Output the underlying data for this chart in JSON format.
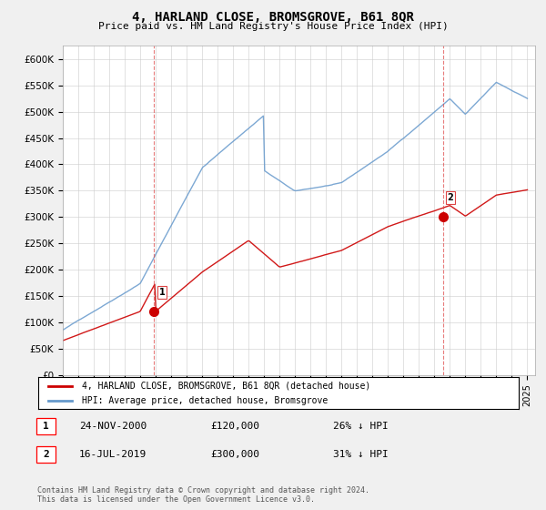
{
  "title": "4, HARLAND CLOSE, BROMSGROVE, B61 8QR",
  "subtitle": "Price paid vs. HM Land Registry's House Price Index (HPI)",
  "ylabel_ticks": [
    0,
    50000,
    100000,
    150000,
    200000,
    250000,
    300000,
    350000,
    400000,
    450000,
    500000,
    550000,
    600000
  ],
  "ylim": [
    0,
    625000
  ],
  "xlim_start": 1995.0,
  "xlim_end": 2025.5,
  "sale1_x": 2000.9,
  "sale1_y": 120000,
  "sale1_label": "1",
  "sale1_date": "24-NOV-2000",
  "sale1_price": "£120,000",
  "sale1_pct": "26% ↓ HPI",
  "sale2_x": 2019.54,
  "sale2_y": 300000,
  "sale2_label": "2",
  "sale2_date": "16-JUL-2019",
  "sale2_price": "£300,000",
  "sale2_pct": "31% ↓ HPI",
  "red_color": "#cc0000",
  "blue_color": "#6699cc",
  "vline_color": "#dd4444",
  "legend_label_red": "4, HARLAND CLOSE, BROMSGROVE, B61 8QR (detached house)",
  "legend_label_blue": "HPI: Average price, detached house, Bromsgrove",
  "footer": "Contains HM Land Registry data © Crown copyright and database right 2024.\nThis data is licensed under the Open Government Licence v3.0.",
  "background_color": "#f0f0f0",
  "plot_bg_color": "#ffffff"
}
